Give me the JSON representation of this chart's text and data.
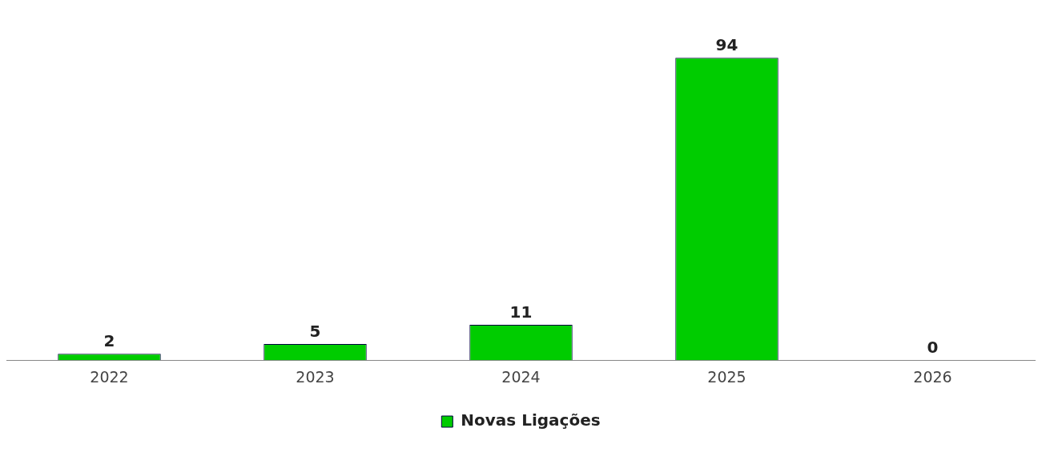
{
  "chart_data": {
    "type": "bar",
    "categories": [
      "2022",
      "2023",
      "2024",
      "2025",
      "2026"
    ],
    "series": [
      {
        "name": "Novas Ligações",
        "color": "#00cc00",
        "values": [
          2,
          5,
          11,
          94,
          0
        ]
      }
    ],
    "data_labels": true,
    "legend": "bottom",
    "grid": false
  }
}
